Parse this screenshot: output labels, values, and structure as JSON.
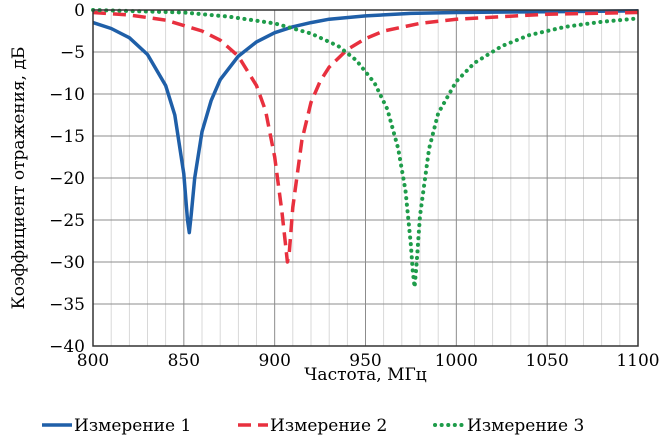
{
  "chart_data": {
    "type": "line",
    "title": "",
    "xlabel": "Частота, МГц",
    "ylabel": "Коэффициент отражения, дБ",
    "xlim": [
      800,
      1100
    ],
    "ylim": [
      -40,
      0
    ],
    "xticks": [
      800,
      850,
      900,
      950,
      1000,
      1050,
      1100
    ],
    "yticks": [
      0,
      -5,
      -10,
      -15,
      -20,
      -25,
      -30,
      -35,
      -40
    ],
    "x_minor_step": 10,
    "grid": true,
    "legend_position": "bottom",
    "series": [
      {
        "name": "Измерение 1",
        "color": "#1f5fa8",
        "style": "solid",
        "points": [
          [
            800,
            -1.5
          ],
          [
            810,
            -2.2
          ],
          [
            820,
            -3.3
          ],
          [
            830,
            -5.3
          ],
          [
            840,
            -9.0
          ],
          [
            845,
            -12.5
          ],
          [
            850,
            -19.5
          ],
          [
            852,
            -25.0
          ],
          [
            853,
            -26.5
          ],
          [
            854,
            -24.5
          ],
          [
            856,
            -20.0
          ],
          [
            860,
            -14.5
          ],
          [
            865,
            -10.8
          ],
          [
            870,
            -8.3
          ],
          [
            880,
            -5.5
          ],
          [
            890,
            -3.8
          ],
          [
            900,
            -2.7
          ],
          [
            910,
            -2.0
          ],
          [
            920,
            -1.5
          ],
          [
            930,
            -1.1
          ],
          [
            950,
            -0.7
          ],
          [
            975,
            -0.4
          ],
          [
            1000,
            -0.3
          ],
          [
            1050,
            -0.2
          ],
          [
            1100,
            -0.1
          ]
        ]
      },
      {
        "name": "Измерение 2",
        "color": "#e8303e",
        "style": "dashed",
        "points": [
          [
            800,
            -0.3
          ],
          [
            820,
            -0.6
          ],
          [
            840,
            -1.2
          ],
          [
            860,
            -2.5
          ],
          [
            870,
            -3.6
          ],
          [
            880,
            -5.5
          ],
          [
            890,
            -9.0
          ],
          [
            895,
            -12.0
          ],
          [
            900,
            -17.5
          ],
          [
            904,
            -24.0
          ],
          [
            906,
            -28.0
          ],
          [
            907,
            -30.0
          ],
          [
            908,
            -29.0
          ],
          [
            910,
            -23.5
          ],
          [
            915,
            -15.5
          ],
          [
            920,
            -11.0
          ],
          [
            925,
            -8.5
          ],
          [
            930,
            -6.8
          ],
          [
            940,
            -4.7
          ],
          [
            950,
            -3.4
          ],
          [
            960,
            -2.5
          ],
          [
            980,
            -1.6
          ],
          [
            1000,
            -1.1
          ],
          [
            1050,
            -0.5
          ],
          [
            1100,
            -0.3
          ]
        ]
      },
      {
        "name": "Измерение 3",
        "color": "#1e9c4a",
        "style": "dotted",
        "points": [
          [
            800,
            0.0
          ],
          [
            850,
            -0.3
          ],
          [
            875,
            -0.8
          ],
          [
            900,
            -1.6
          ],
          [
            920,
            -2.8
          ],
          [
            935,
            -4.3
          ],
          [
            945,
            -6.0
          ],
          [
            955,
            -8.7
          ],
          [
            962,
            -11.8
          ],
          [
            968,
            -16.5
          ],
          [
            972,
            -21.5
          ],
          [
            975,
            -28.0
          ],
          [
            976,
            -31.0
          ],
          [
            977,
            -33.0
          ],
          [
            978,
            -30.5
          ],
          [
            980,
            -24.5
          ],
          [
            985,
            -16.5
          ],
          [
            990,
            -12.3
          ],
          [
            1000,
            -8.5
          ],
          [
            1010,
            -6.3
          ],
          [
            1025,
            -4.3
          ],
          [
            1040,
            -3.0
          ],
          [
            1060,
            -2.0
          ],
          [
            1080,
            -1.4
          ],
          [
            1100,
            -1.0
          ]
        ]
      }
    ]
  }
}
